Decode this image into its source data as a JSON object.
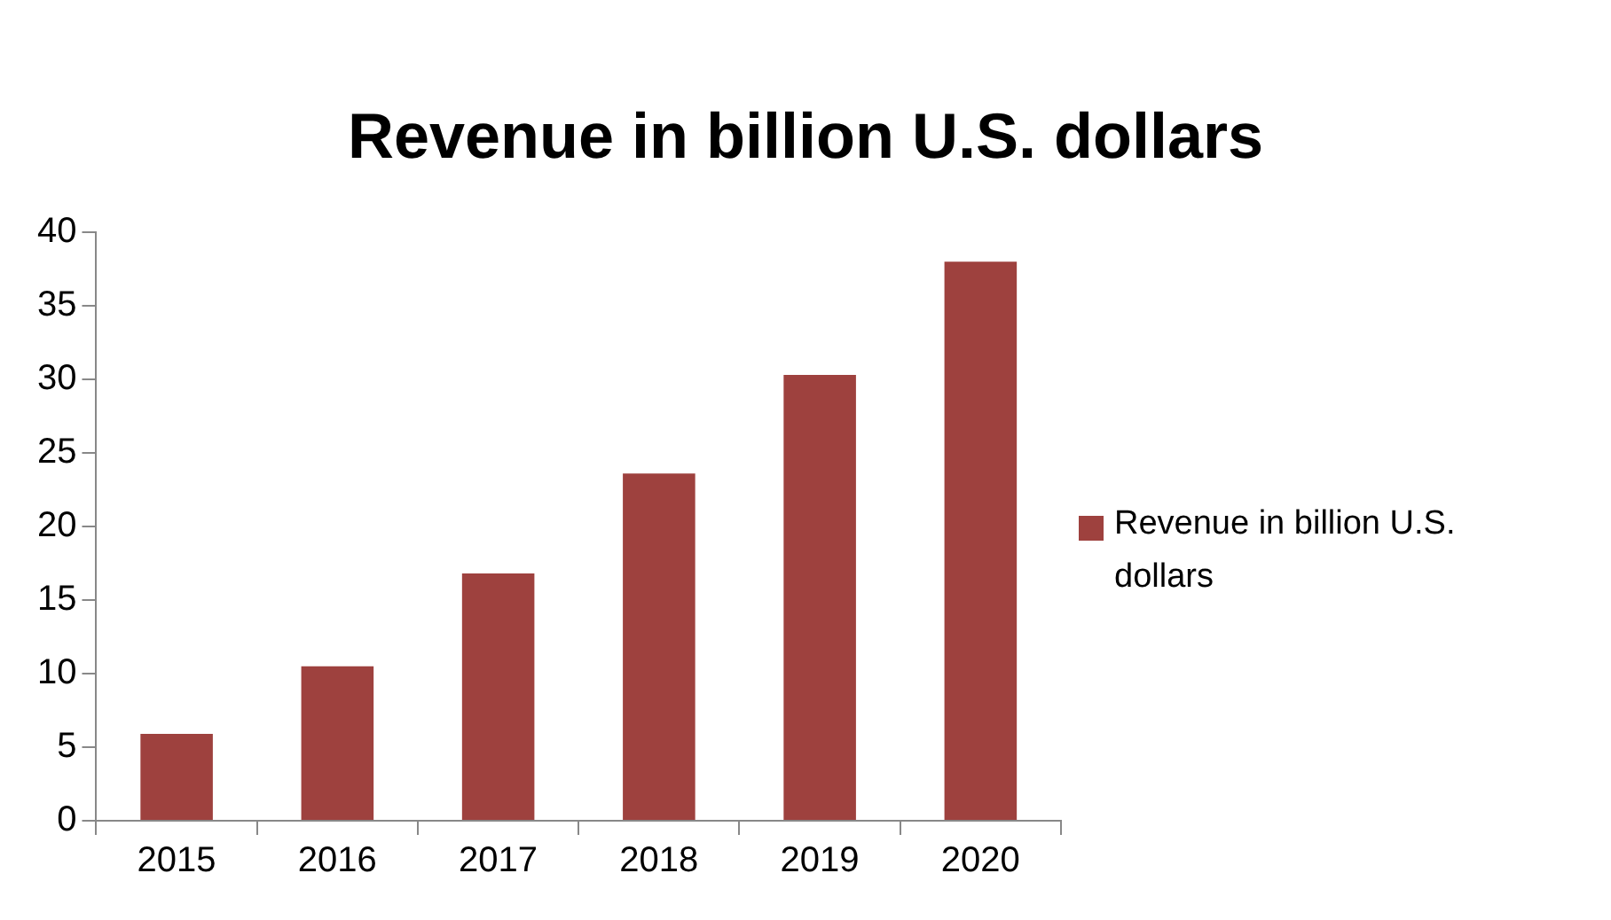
{
  "chart_data": {
    "type": "bar",
    "title": "Revenue in billion U.S. dollars",
    "categories": [
      "2015",
      "2016",
      "2017",
      "2018",
      "2019",
      "2020"
    ],
    "series": [
      {
        "name": "Revenue in billion U.S. dollars",
        "color": "#9e413e",
        "values": [
          5.9,
          10.5,
          16.8,
          23.6,
          30.3,
          38.0
        ]
      }
    ],
    "ylim": [
      0,
      40
    ],
    "yticks": [
      0,
      5,
      10,
      15,
      20,
      25,
      30,
      35,
      40
    ],
    "legend": "right"
  }
}
